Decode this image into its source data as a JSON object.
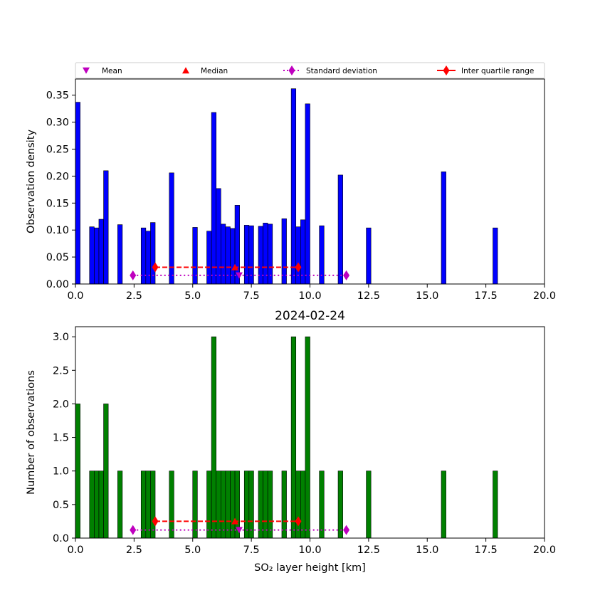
{
  "chart_data": {
    "type": "bar",
    "xlim": [
      0,
      20
    ],
    "xticks": [
      0,
      2.5,
      5,
      7.5,
      10,
      12.5,
      15,
      17.5,
      20
    ],
    "xtick_labels": [
      "0.0",
      "2.5",
      "5.0",
      "7.5",
      "10.0",
      "12.5",
      "15.0",
      "17.5",
      "20.0"
    ],
    "bin_width": 0.2,
    "bins_start": [
      0,
      0.6,
      0.8,
      1.0,
      1.2,
      1.8,
      2.8,
      3.0,
      3.2,
      4.0,
      5.0,
      5.6,
      5.8,
      6.0,
      6.2,
      6.4,
      6.6,
      6.8,
      7.2,
      7.4,
      7.8,
      8.0,
      8.2,
      8.8,
      9.2,
      9.4,
      9.6,
      9.8,
      10.4,
      11.2,
      12.4,
      15.6,
      17.8
    ],
    "statistics": {
      "mean": 6.98,
      "median": 6.8,
      "std_range": [
        2.45,
        11.55
      ],
      "iqr_range": [
        3.4,
        9.5
      ]
    },
    "legend": {
      "placement": "top",
      "entries": [
        "Mean",
        "Median",
        "Standard deviation",
        "Inter quartile range"
      ],
      "colors": {
        "mean": "#bf00bf",
        "median": "#ff0000",
        "std": "#bf00bf",
        "iqr": "#ff0000"
      }
    },
    "panels": [
      {
        "title": "",
        "ylabel": "Observation density",
        "ylim": [
          0,
          0.38
        ],
        "yticks": [
          0,
          0.05,
          0.1,
          0.15,
          0.2,
          0.25,
          0.3,
          0.35
        ],
        "ytick_labels": [
          "0.00",
          "0.05",
          "0.10",
          "0.15",
          "0.20",
          "0.25",
          "0.30",
          "0.35"
        ],
        "color": "#0000ff",
        "values": [
          0.337,
          0.106,
          0.104,
          0.12,
          0.21,
          0.11,
          0.104,
          0.098,
          0.114,
          0.206,
          0.105,
          0.098,
          0.318,
          0.177,
          0.111,
          0.106,
          0.103,
          0.146,
          0.109,
          0.108,
          0.107,
          0.113,
          0.111,
          0.121,
          0.362,
          0.106,
          0.119,
          0.334,
          0.108,
          0.202,
          0.104,
          0.208,
          0.104
        ],
        "marker_y": {
          "std": 0.016,
          "mean": 0.016,
          "iqr": 0.031,
          "median": 0.031
        }
      },
      {
        "title": "2024-02-24",
        "ylabel": "Number of observations",
        "ylim": [
          0,
          3.15
        ],
        "yticks": [
          0,
          0.5,
          1,
          1.5,
          2,
          2.5,
          3
        ],
        "ytick_labels": [
          "0.0",
          "0.5",
          "1.0",
          "1.5",
          "2.0",
          "2.5",
          "3.0"
        ],
        "xlabel": "SO₂ layer height [km]",
        "color": "#008000",
        "values": [
          2,
          1,
          1,
          1,
          2,
          1,
          1,
          1,
          1,
          1,
          1,
          1,
          3,
          1,
          1,
          1,
          1,
          1,
          1,
          1,
          1,
          1,
          1,
          1,
          3,
          1,
          1,
          3,
          1,
          1,
          1,
          1,
          1
        ],
        "marker_y": {
          "std": 0.12,
          "mean": 0.12,
          "iqr": 0.25,
          "median": 0.25
        }
      }
    ]
  }
}
